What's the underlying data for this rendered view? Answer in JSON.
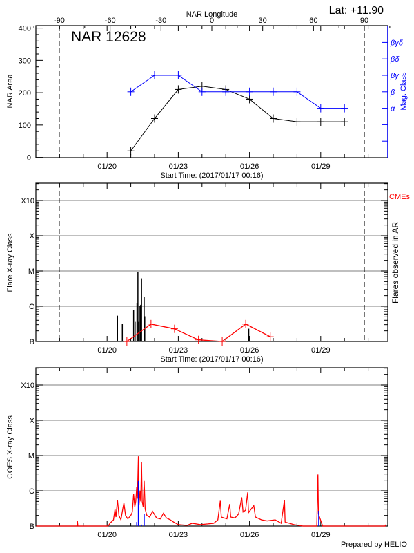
{
  "chart_data": [
    {
      "type": "line",
      "panel": "nar",
      "title": "NAR 12628",
      "annotation": "Lat: +11.90",
      "top_axis_label": "NAR Longitude",
      "top_ticks": [
        -90,
        -60,
        -30,
        0,
        30,
        60,
        90
      ],
      "xlabel": "Start Time: (2017/01/17 00:16)",
      "x_ticks": [
        "01/20",
        "01/23",
        "01/26",
        "01/29"
      ],
      "ylabel": "NAR Area",
      "ylim": [
        0,
        400
      ],
      "y_ticks": [
        0,
        100,
        200,
        300,
        400
      ],
      "right_axis_label": "Mag. Class",
      "right_ticks": [
        "",
        "",
        "α",
        "β",
        "βγ",
        "βδ",
        "βγδ"
      ],
      "limb_longitudes": [
        -90,
        90
      ],
      "series": [
        {
          "key": "area",
          "color": "#000000",
          "x": [
            "01/21 00:00",
            "01/22 00:00",
            "01/23 00:00",
            "01/24 00:00",
            "01/25 00:00",
            "01/26 00:00",
            "01/27 00:00",
            "01/28 00:00",
            "01/29 00:00",
            "01/30 00:00"
          ],
          "values": [
            20,
            120,
            210,
            220,
            210,
            180,
            120,
            110,
            110,
            110
          ]
        },
        {
          "key": "mag_class",
          "color": "#0000ff",
          "x": [
            "01/21 00:00",
            "01/22 00:00",
            "01/23 00:00",
            "01/24 00:00",
            "01/25 00:00",
            "01/26 00:00",
            "01/27 00:00",
            "01/28 00:00",
            "01/29 00:00",
            "01/30 00:00"
          ],
          "values": [
            "β",
            "βγ",
            "βγ",
            "β",
            "β",
            "β",
            "β",
            "β",
            "α",
            "α"
          ]
        }
      ]
    },
    {
      "type": "bar",
      "panel": "flares",
      "xlabel": "Start Time: (2017/01/17 00:16)",
      "x_ticks": [
        "01/20",
        "01/23",
        "01/26",
        "01/29"
      ],
      "ylabel": "Flare X-ray Class",
      "y_ticks": [
        "B",
        "C",
        "M",
        "X",
        "X10"
      ],
      "right_label": "Flares observed in AR",
      "cme_label": "CMEs",
      "grid": true,
      "limb_longitudes": [
        -90,
        90
      ],
      "flares": {
        "color": "#000000",
        "x": [
          "01/20 10:30",
          "01/20 15:25",
          "01/21 02:50",
          "01/21 04:20",
          "01/21 06:15",
          "01/21 07:10",
          "01/21 08:10",
          "01/21 09:20",
          "01/21 10:00",
          "01/21 10:50",
          "01/21 13:30",
          "01/21 14:05",
          "01/25 23:15"
        ],
        "values": [
          "B5.4",
          "B3.1",
          "B7.7",
          "B3.6",
          "C1.2",
          "C9.3",
          "B3.6",
          "C1.0",
          "C1.1",
          "C6.2",
          "C1.8",
          "B5.2",
          "B2.3"
        ]
      },
      "cmes": {
        "color": "#ff0000",
        "ylim": [
          0,
          10
        ],
        "x": [
          "01/20 20:00",
          "01/21 20:25",
          "01/22 20:10",
          "01/23 20:25",
          "01/24 20:25",
          "01/25 20:10",
          "01/26 21:00"
        ],
        "values": [
          0,
          1.1,
          0.8,
          0.1,
          0,
          1.1,
          0.3
        ]
      }
    },
    {
      "type": "line",
      "panel": "goes",
      "ylabel": "GOES X-ray Class",
      "x_ticks": [
        "01/20",
        "01/23",
        "01/26",
        "01/29"
      ],
      "y_ticks": [
        "B",
        "C",
        "M",
        "X",
        "X10"
      ],
      "grid": true,
      "goes": {
        "color": "#ff0000",
        "x": [
          "01/17 00:16",
          "01/18 17:30",
          "01/18 18:00",
          "01/18 18:30",
          "01/20 01:00",
          "01/20 03:00",
          "01/20 06:30",
          "01/20 08:00",
          "01/20 09:00",
          "01/20 10:30",
          "01/20 12:00",
          "01/20 14:00",
          "01/20 16:00",
          "01/20 17:00",
          "01/20 18:40",
          "01/20 21:00",
          "01/21 00:00",
          "01/21 01:30",
          "01/21 02:50",
          "01/21 04:00",
          "01/21 05:00",
          "01/21 06:00",
          "01/21 06:40",
          "01/21 07:40",
          "01/21 08:20",
          "01/21 09:20",
          "01/21 10:00",
          "01/21 10:50",
          "01/21 11:30",
          "01/21 12:30",
          "01/21 13:30",
          "01/21 14:30",
          "01/21 16:15",
          "01/21 19:00",
          "01/21 22:00",
          "01/22 02:00",
          "01/22 05:50",
          "01/22 09:00",
          "01/22 12:00",
          "01/22 16:00",
          "01/22 19:15",
          "01/23 00:00",
          "01/23 08:50",
          "01/23 14:00",
          "01/23 22:20",
          "01/24 06:00",
          "01/24 11:50",
          "01/24 16:00",
          "01/24 18:30",
          "01/24 19:30",
          "01/25 01:10",
          "01/25 04:00",
          "01/25 05:00",
          "01/25 09:20",
          "01/25 13:00",
          "01/25 16:10",
          "01/25 17:30",
          "01/25 20:00",
          "01/25 22:10",
          "01/25 23:00",
          "01/26 04:20",
          "01/26 06:00",
          "01/26 12:00",
          "01/26 17:50",
          "01/27 02:00",
          "01/27 08:00",
          "01/27 11:20",
          "01/27 12:00",
          "01/27 20:50",
          "01/28 06:00",
          "01/28 20:00",
          "01/28 20:40",
          "01/28 21:10",
          "01/28 21:40",
          "01/29 02:00",
          "01/31 17:00",
          "01/31 18:00"
        ],
        "values": [
          "A8",
          "A8",
          "B1.4",
          "A8",
          "A9",
          "B1.2",
          "B1.5",
          "B3.0",
          "B1.8",
          "B5.5",
          "B2.0",
          "B1.5",
          "B3.2",
          "B4.5",
          "B2.0",
          "B1.6",
          "B2.0",
          "B2.5",
          "B8.0",
          "B3.5",
          "B5.0",
          "C1.3",
          "B6.0",
          "C9.5",
          "B4.0",
          "C1.0",
          "B5.0",
          "C6.6",
          "B5.0",
          "B3.5",
          "C1.9",
          "B3.0",
          "B2.0",
          "B1.8",
          "B2.6",
          "B1.7",
          "B1.6",
          "B2.3",
          "B1.7",
          "B1.5",
          "B1.3",
          "B1.1",
          "B1.05",
          "B1.2",
          "B1.1",
          "B1.15",
          "B1.2",
          "B1.5",
          "B5.2",
          "B1.8",
          "B1.6",
          "B4.2",
          "B1.8",
          "B1.7",
          "B2.2",
          "B6.5",
          "B2.5",
          "B2.8",
          "B9.0",
          "B2.4",
          "B3.8",
          "B1.8",
          "B1.5",
          "B1.4",
          "B1.5",
          "B1.2",
          "B5.5",
          "B1.3",
          "B1.1",
          "A9",
          "B1.0",
          "B7.0",
          "C2.9",
          "B2.2",
          "A9",
          "A9",
          "B1.1"
        ]
      },
      "events": {
        "color": "#0000ff",
        "x": [
          "01/21 06:00",
          "01/21 07:40",
          "01/21 10:50",
          "01/21 13:30",
          "01/28 22:00"
        ],
        "values": [
          "B1.3",
          "C1.9",
          "B1.1",
          "B2.2",
          "B2.7"
        ]
      }
    }
  ],
  "footer": {
    "credit": "Prepared by HELIO"
  }
}
